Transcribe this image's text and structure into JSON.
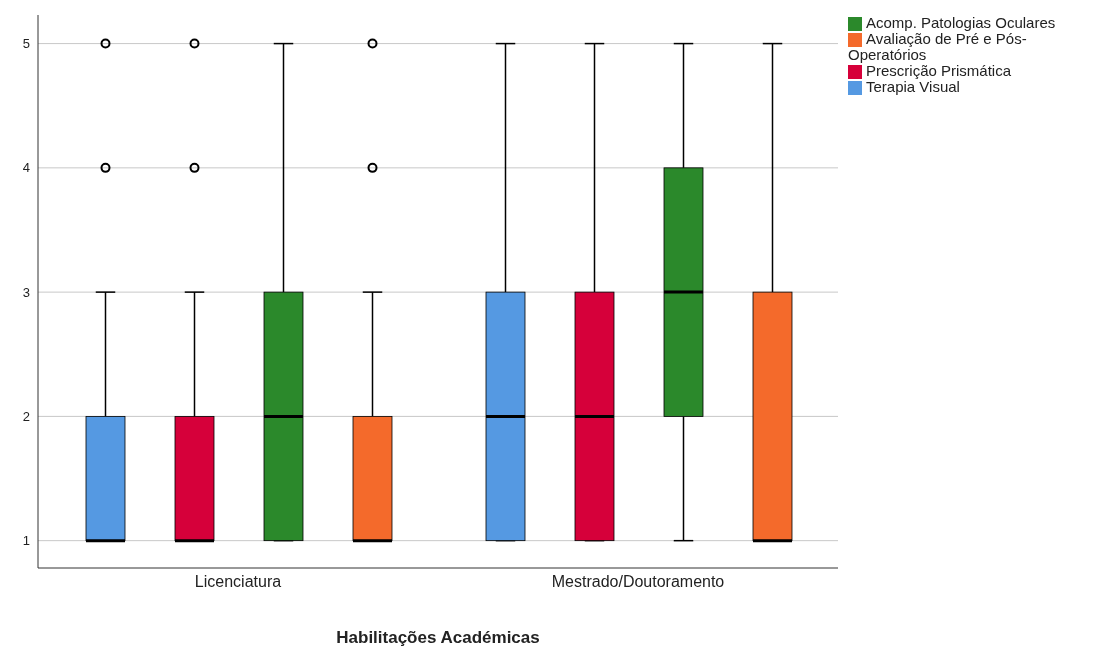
{
  "chart_data": {
    "type": "box",
    "xlabel": "Habilitações Académicas",
    "categories": [
      "Licenciatura",
      "Mestrado/Doutoramento"
    ],
    "series": [
      {
        "name": "Terapia Visual",
        "color": "#5599e2",
        "boxes": [
          {
            "low": 1,
            "q1": 1,
            "median": 1,
            "q3": 2,
            "high": 3,
            "outliers": [
              4,
              5
            ]
          },
          {
            "low": 1,
            "q1": 1,
            "median": 2,
            "q3": 3,
            "high": 5
          }
        ]
      },
      {
        "name": "Prescrição Prismática",
        "color": "#d6003a",
        "boxes": [
          {
            "low": 1,
            "q1": 1,
            "median": 1,
            "q3": 2,
            "high": 3,
            "outliers": [
              4,
              5
            ]
          },
          {
            "low": 1,
            "q1": 1,
            "median": 2,
            "q3": 3,
            "high": 5
          }
        ]
      },
      {
        "name": "Acomp. Patologias Oculares",
        "color": "#2b892b",
        "boxes": [
          {
            "low": 1,
            "q1": 1,
            "median": 2,
            "q3": 3,
            "high": 5
          },
          {
            "low": 1,
            "q1": 2,
            "median": 3,
            "q3": 4,
            "high": 5
          }
        ]
      },
      {
        "name": "Avaliação de Pré e Pós-Operatórios",
        "color": "#f46a2b",
        "boxes": [
          {
            "low": 1,
            "q1": 1,
            "median": 1,
            "q3": 2,
            "high": 3,
            "outliers": [
              4,
              5
            ]
          },
          {
            "low": 1,
            "q1": 1,
            "median": 1,
            "q3": 3,
            "high": 5
          }
        ]
      }
    ],
    "ylim": [
      0.78,
      5.23
    ],
    "yticks": [
      1,
      2,
      3,
      4,
      5
    ],
    "grid": "y",
    "legend": "top right"
  }
}
